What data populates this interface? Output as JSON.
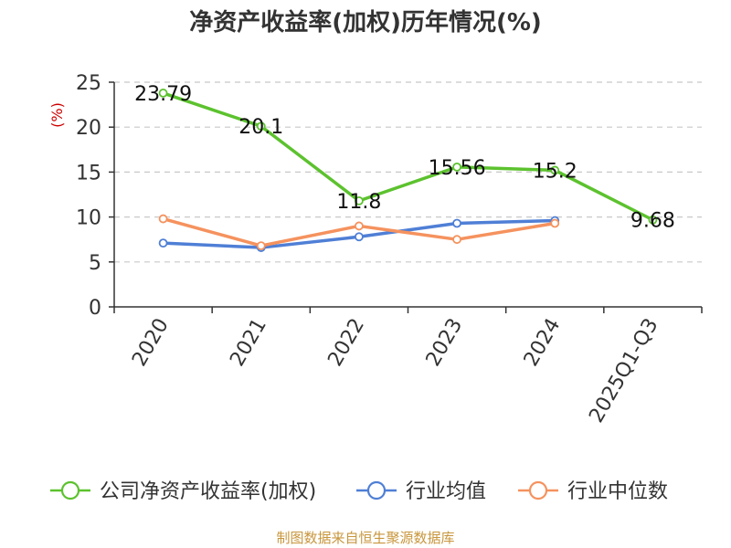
{
  "chart_data": {
    "type": "line",
    "title": "净资产收益率(加权)历年情况(%)",
    "ylabel": "(%)",
    "xlabel": "",
    "categories": [
      "2020",
      "2021",
      "2022",
      "2023",
      "2024",
      "2025Q1-Q3"
    ],
    "ylim": [
      0,
      25
    ],
    "yticks": [
      "0",
      "5",
      "10",
      "15",
      "20",
      "25"
    ],
    "grid": true,
    "legend_position": "bottom",
    "series": [
      {
        "name": "公司净资产收益率(加权)",
        "color": "#5cc22e",
        "values": [
          23.79,
          20.1,
          11.8,
          15.56,
          15.2,
          9.68
        ],
        "labels": [
          "23.79",
          "20.1",
          "11.8",
          "15.56",
          "15.2",
          "9.68"
        ]
      },
      {
        "name": "行业均值",
        "color": "#4f7fd6",
        "values": [
          7.1,
          6.6,
          7.8,
          9.3,
          9.6,
          null
        ]
      },
      {
        "name": "行业中位数",
        "color": "#f5925e",
        "values": [
          9.8,
          6.8,
          9.0,
          7.5,
          9.3,
          null
        ]
      }
    ]
  },
  "source": {
    "text": "制图数据来自恒生聚源数据库",
    "color": "#c8963c"
  },
  "ylabel_color": "#cc0000"
}
